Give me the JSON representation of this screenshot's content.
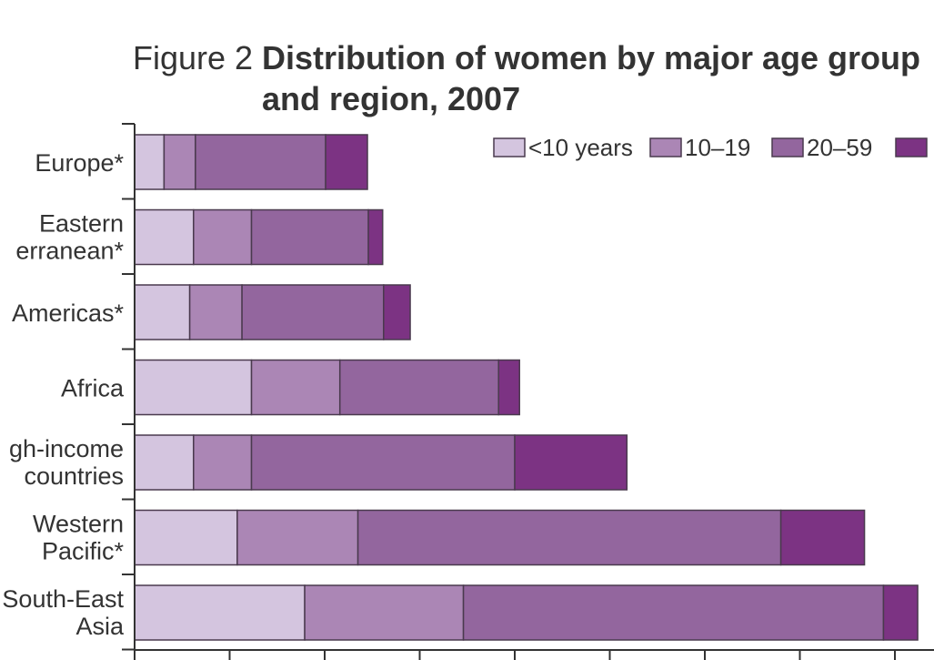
{
  "figure": {
    "prefix": "Figure 2",
    "title_line1": "Distribution of women by major age group",
    "title_line2": "and region, 2007"
  },
  "chart_data": {
    "type": "bar",
    "orientation": "horizontal",
    "stacked": true,
    "title": "Distribution of women by major age group and region, 2007",
    "categories": [
      [
        "Europe*"
      ],
      [
        "Eastern",
        "erranean*"
      ],
      [
        "Americas*"
      ],
      [
        "Africa"
      ],
      [
        "gh-income",
        "countries"
      ],
      [
        "Western",
        "Pacific*"
      ],
      [
        "South-East",
        "Asia"
      ]
    ],
    "series": [
      {
        "name": "<10 years",
        "color": "#d4c5df",
        "values": [
          31,
          62,
          58,
          123,
          62,
          108,
          179
        ]
      },
      {
        "name": "10–19",
        "color": "#ab86b5",
        "values": [
          33,
          61,
          55,
          93,
          61,
          127,
          167
        ]
      },
      {
        "name": "20–59",
        "color": "#93669e",
        "values": [
          137,
          123,
          149,
          167,
          277,
          445,
          442
        ]
      },
      {
        "name": "",
        "color": "#7c3383",
        "values": [
          44,
          15,
          28,
          22,
          118,
          88,
          36
        ]
      }
    ],
    "legend_position": "top-right",
    "x_min": 0,
    "x_max": 824,
    "x_tick_step": 100,
    "grid": false
  }
}
